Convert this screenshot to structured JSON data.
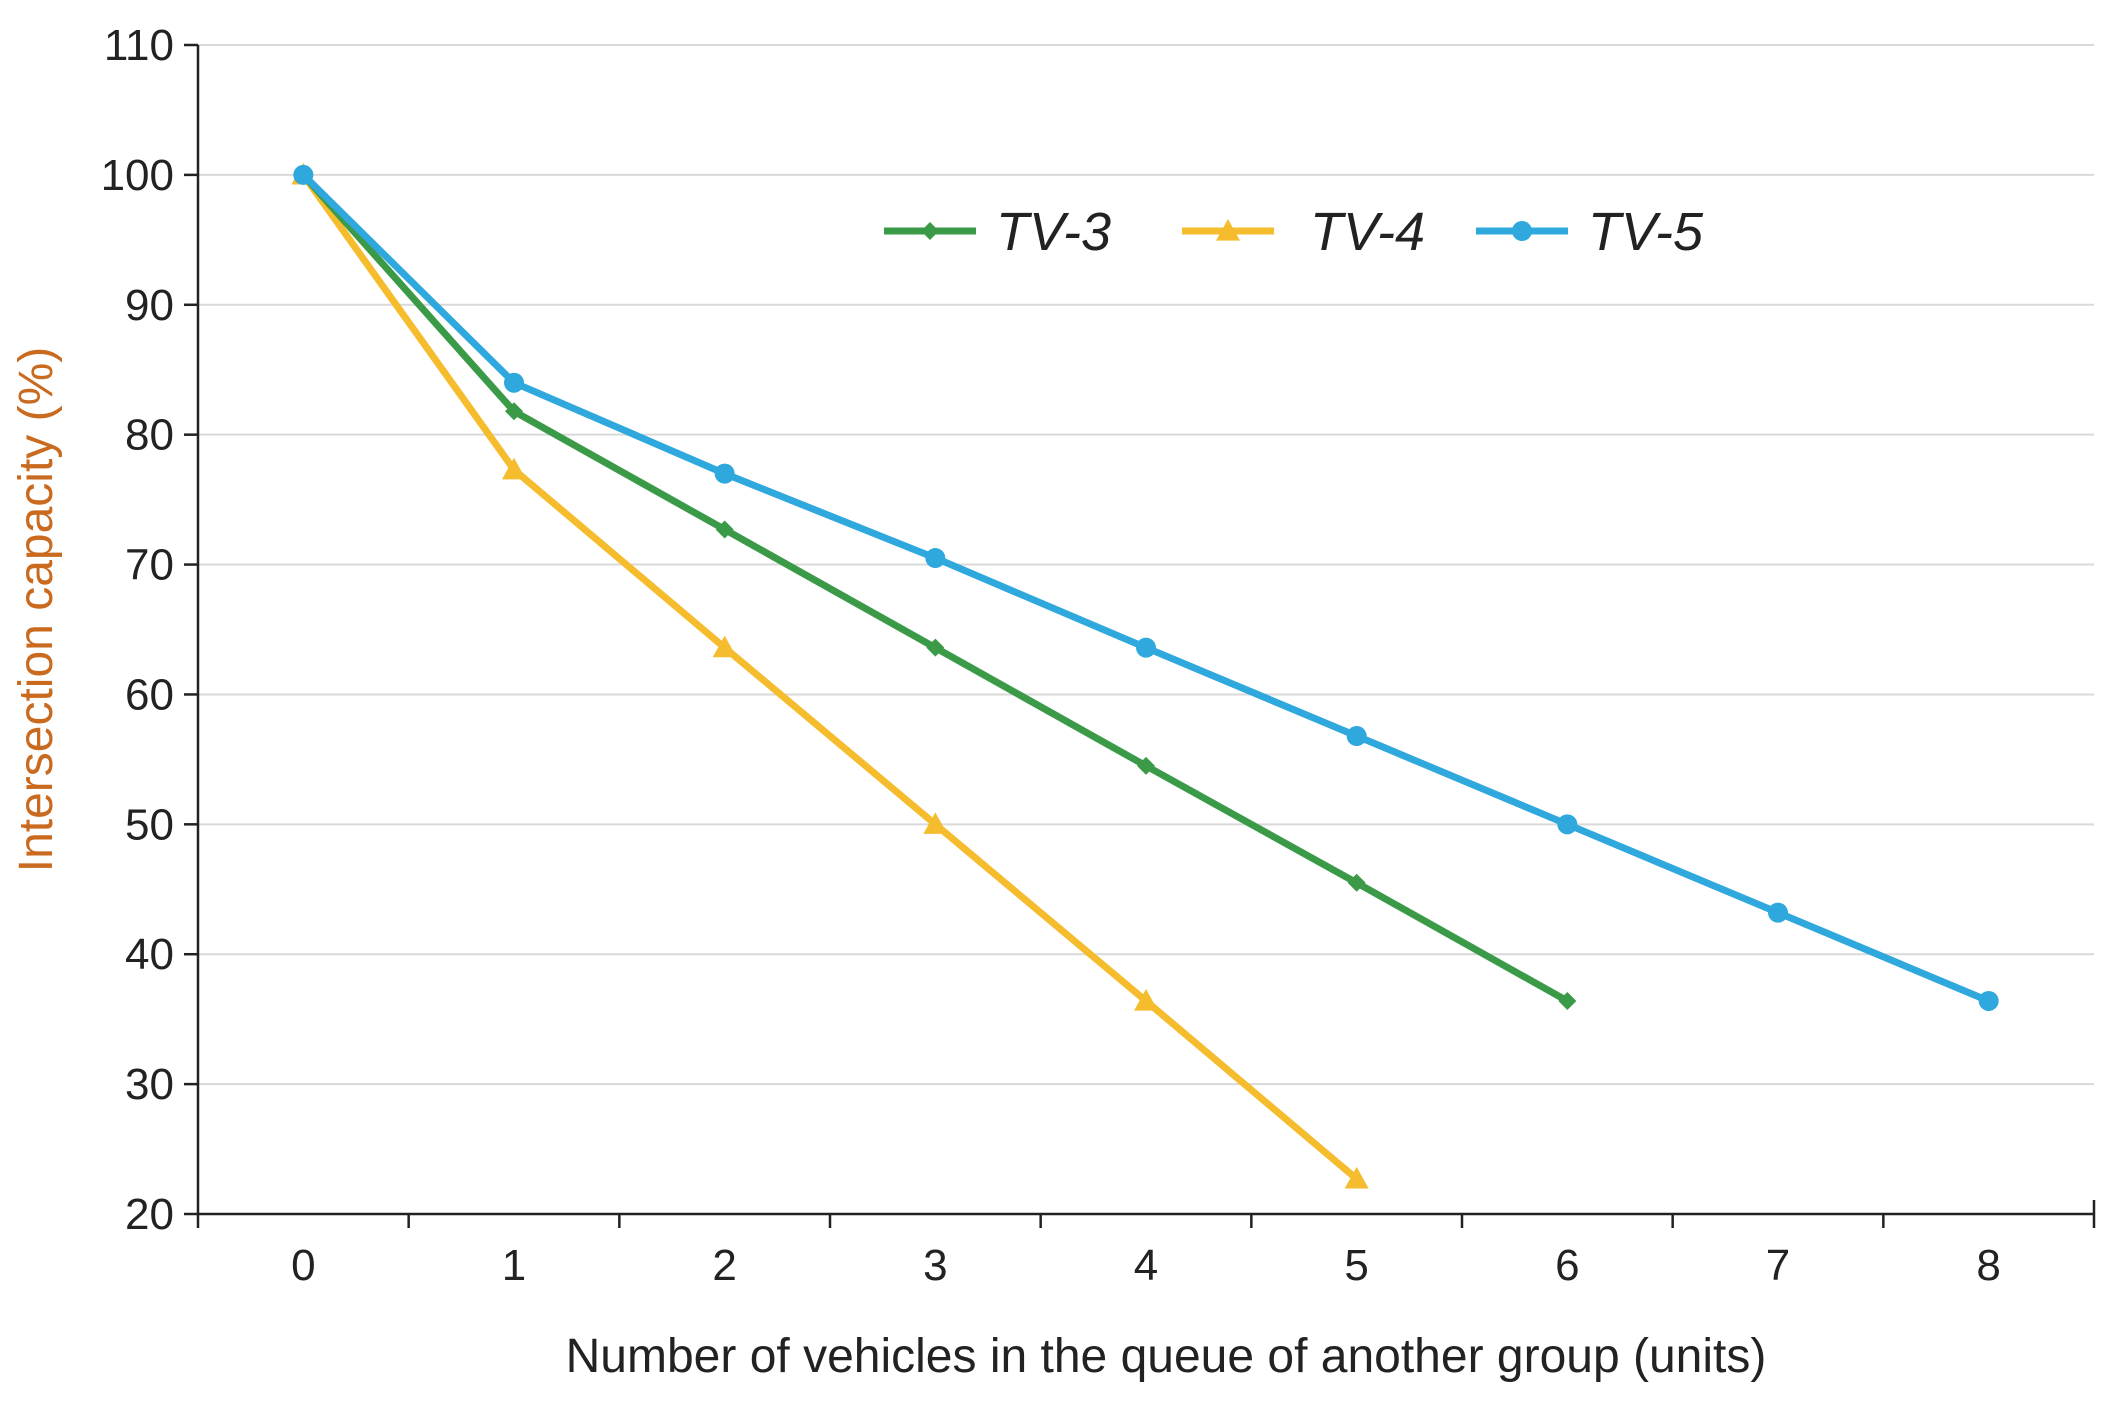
{
  "chart_data": {
    "type": "line",
    "title": "",
    "xlabel": "Number of vehicles in the queue of another group (units)",
    "ylabel": "Intersection capacity (%)",
    "xlim": [
      -0.5,
      8.5
    ],
    "ylim": [
      20,
      110
    ],
    "x_ticks": [
      0,
      1,
      2,
      3,
      4,
      5,
      6,
      7,
      8
    ],
    "y_ticks": [
      20,
      30,
      40,
      50,
      60,
      70,
      80,
      90,
      100,
      110
    ],
    "grid": "horizontal",
    "legend_position": "top-right",
    "series": [
      {
        "name": "TV-3",
        "color": "#3a9a47",
        "marker": "diamond",
        "x": [
          0,
          1,
          2,
          3,
          4,
          5,
          6
        ],
        "values": [
          100,
          81.8,
          72.7,
          63.6,
          54.5,
          45.5,
          36.4
        ]
      },
      {
        "name": "TV-4",
        "color": "#f5bd2e",
        "marker": "triangle",
        "x": [
          0,
          1,
          2,
          3,
          4,
          5
        ],
        "values": [
          100,
          77.3,
          63.6,
          50,
          36.4,
          22.7
        ]
      },
      {
        "name": "TV-5",
        "color": "#2fa8dd",
        "marker": "circle",
        "x": [
          0,
          1,
          2,
          3,
          4,
          5,
          6,
          7,
          8
        ],
        "values": [
          100,
          84,
          77,
          70.5,
          63.6,
          56.8,
          50,
          43.2,
          36.4
        ]
      }
    ]
  },
  "style": {
    "axis_color": "#222222",
    "grid_color": "#d9d9d9",
    "ylabel_color": "#c96a1e",
    "xlabel_color": "#222222"
  }
}
